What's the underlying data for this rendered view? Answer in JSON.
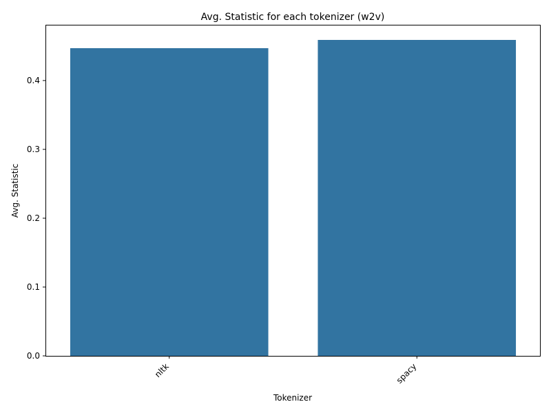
{
  "chart_data": {
    "type": "bar",
    "title": "Avg. Statistic for each tokenizer (w2v)",
    "xlabel": "Tokenizer",
    "ylabel": "Avg. Statistic",
    "categories": [
      "nltk",
      "spacy"
    ],
    "values": [
      0.447,
      0.459
    ],
    "ylim": [
      0,
      0.48
    ],
    "yticks": [
      0.0,
      0.1,
      0.2,
      0.3,
      0.4
    ],
    "ytick_labels": [
      "0.0",
      "0.1",
      "0.2",
      "0.3",
      "0.4"
    ],
    "grid": false,
    "legend": "none",
    "bar_color": "#3274a1"
  }
}
